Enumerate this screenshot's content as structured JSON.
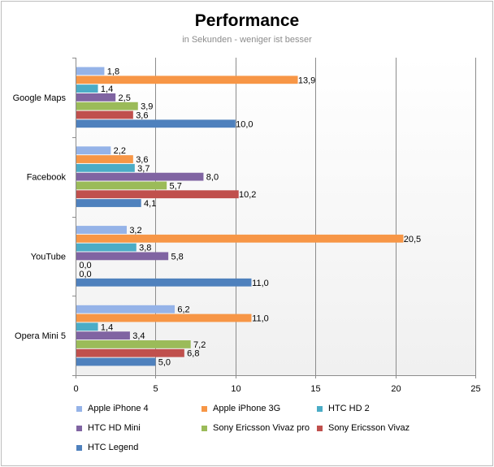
{
  "chart_data": {
    "type": "bar",
    "orientation": "horizontal",
    "title": "Performance",
    "subtitle": "in Sekunden - weniger ist besser",
    "categories": [
      "Google Maps",
      "Facebook",
      "YouTube",
      "Opera Mini 5"
    ],
    "xlim": [
      0,
      25
    ],
    "xticks": [
      0,
      5,
      10,
      15,
      20,
      25
    ],
    "grid": true,
    "legend_position": "bottom",
    "series": [
      {
        "name": "Apple iPhone 4",
        "color": "#95b3e8",
        "values": [
          1.8,
          2.2,
          3.2,
          6.2
        ],
        "labels": [
          "1,8",
          "2,2",
          "3,2",
          "6,2"
        ]
      },
      {
        "name": "Apple iPhone 3G",
        "color": "#f79646",
        "values": [
          13.9,
          3.6,
          20.5,
          11.0
        ],
        "labels": [
          "13,9",
          "3,6",
          "20,5",
          "11,0"
        ]
      },
      {
        "name": "HTC HD 2",
        "color": "#4bacc6",
        "values": [
          1.4,
          3.7,
          3.8,
          1.4
        ],
        "labels": [
          "1,4",
          "3,7",
          "3,8",
          "1,4"
        ]
      },
      {
        "name": "HTC HD Mini",
        "color": "#8064a2",
        "values": [
          2.5,
          8.0,
          5.8,
          3.4
        ],
        "labels": [
          "2,5",
          "8,0",
          "5,8",
          "3,4"
        ]
      },
      {
        "name": "Sony Ericsson Vivaz pro",
        "color": "#9bbb59",
        "values": [
          3.9,
          5.7,
          0.0,
          7.2
        ],
        "labels": [
          "3,9",
          "5,7",
          "0,0",
          "7,2"
        ]
      },
      {
        "name": "Sony Ericsson Vivaz",
        "color": "#c0504d",
        "values": [
          3.6,
          10.2,
          0.0,
          6.8
        ],
        "labels": [
          "3,6",
          "10,2",
          "0,0",
          "6,8"
        ]
      },
      {
        "name": "HTC Legend",
        "color": "#4f81bd",
        "values": [
          10.0,
          4.1,
          11.0,
          5.0
        ],
        "labels": [
          "10,0",
          "4,1",
          "11,0",
          "5,0"
        ]
      }
    ]
  }
}
